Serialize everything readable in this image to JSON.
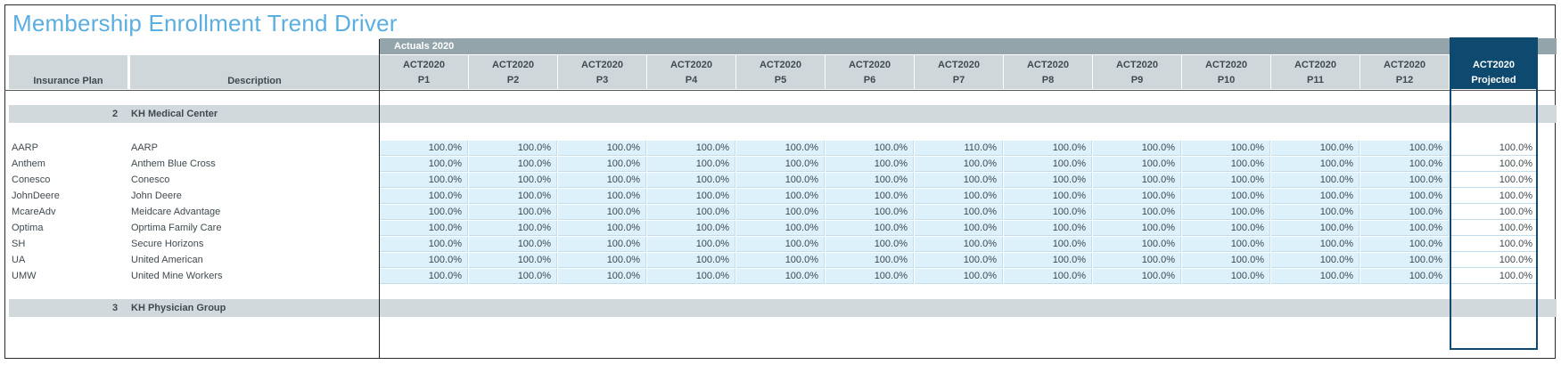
{
  "title": "Membership Enrollment Trend Driver",
  "actuals_label": "Actuals 2020",
  "headers": {
    "plan": "Insurance Plan",
    "description": "Description",
    "columns": [
      {
        "l1": "ACT2020",
        "l2": "P1"
      },
      {
        "l1": "ACT2020",
        "l2": "P2"
      },
      {
        "l1": "ACT2020",
        "l2": "P3"
      },
      {
        "l1": "ACT2020",
        "l2": "P4"
      },
      {
        "l1": "ACT2020",
        "l2": "P5"
      },
      {
        "l1": "ACT2020",
        "l2": "P6"
      },
      {
        "l1": "ACT2020",
        "l2": "P7"
      },
      {
        "l1": "ACT2020",
        "l2": "P8"
      },
      {
        "l1": "ACT2020",
        "l2": "P9"
      },
      {
        "l1": "ACT2020",
        "l2": "P10"
      },
      {
        "l1": "ACT2020",
        "l2": "P11"
      },
      {
        "l1": "ACT2020",
        "l2": "P12"
      }
    ],
    "projected": {
      "l1": "ACT2020",
      "l2": "Projected"
    }
  },
  "groups": [
    {
      "num": "2",
      "name": "KH Medical Center"
    },
    {
      "num": "3",
      "name": "KH Physician Group"
    }
  ],
  "rows": [
    {
      "plan": "AARP",
      "desc": "AARP",
      "values": [
        "100.0%",
        "100.0%",
        "100.0%",
        "100.0%",
        "100.0%",
        "100.0%",
        "110.0%",
        "100.0%",
        "100.0%",
        "100.0%",
        "100.0%",
        "100.0%"
      ],
      "projected": "100.0%"
    },
    {
      "plan": "Anthem",
      "desc": "Anthem Blue Cross",
      "values": [
        "100.0%",
        "100.0%",
        "100.0%",
        "100.0%",
        "100.0%",
        "100.0%",
        "100.0%",
        "100.0%",
        "100.0%",
        "100.0%",
        "100.0%",
        "100.0%"
      ],
      "projected": "100.0%"
    },
    {
      "plan": "Conesco",
      "desc": "Conesco",
      "values": [
        "100.0%",
        "100.0%",
        "100.0%",
        "100.0%",
        "100.0%",
        "100.0%",
        "100.0%",
        "100.0%",
        "100.0%",
        "100.0%",
        "100.0%",
        "100.0%"
      ],
      "projected": "100.0%"
    },
    {
      "plan": "JohnDeere",
      "desc": "John Deere",
      "values": [
        "100.0%",
        "100.0%",
        "100.0%",
        "100.0%",
        "100.0%",
        "100.0%",
        "100.0%",
        "100.0%",
        "100.0%",
        "100.0%",
        "100.0%",
        "100.0%"
      ],
      "projected": "100.0%"
    },
    {
      "plan": "McareAdv",
      "desc": "Meidcare Advantage",
      "values": [
        "100.0%",
        "100.0%",
        "100.0%",
        "100.0%",
        "100.0%",
        "100.0%",
        "100.0%",
        "100.0%",
        "100.0%",
        "100.0%",
        "100.0%",
        "100.0%"
      ],
      "projected": "100.0%"
    },
    {
      "plan": "Optima",
      "desc": "Oprtima Family Care",
      "values": [
        "100.0%",
        "100.0%",
        "100.0%",
        "100.0%",
        "100.0%",
        "100.0%",
        "100.0%",
        "100.0%",
        "100.0%",
        "100.0%",
        "100.0%",
        "100.0%"
      ],
      "projected": "100.0%"
    },
    {
      "plan": "SH",
      "desc": "Secure Horizons",
      "values": [
        "100.0%",
        "100.0%",
        "100.0%",
        "100.0%",
        "100.0%",
        "100.0%",
        "100.0%",
        "100.0%",
        "100.0%",
        "100.0%",
        "100.0%",
        "100.0%"
      ],
      "projected": "100.0%"
    },
    {
      "plan": "UA",
      "desc": "United American",
      "values": [
        "100.0%",
        "100.0%",
        "100.0%",
        "100.0%",
        "100.0%",
        "100.0%",
        "100.0%",
        "100.0%",
        "100.0%",
        "100.0%",
        "100.0%",
        "100.0%"
      ],
      "projected": "100.0%"
    },
    {
      "plan": "UMW",
      "desc": "United Mine Workers",
      "values": [
        "100.0%",
        "100.0%",
        "100.0%",
        "100.0%",
        "100.0%",
        "100.0%",
        "100.0%",
        "100.0%",
        "100.0%",
        "100.0%",
        "100.0%",
        "100.0%"
      ],
      "projected": "100.0%"
    }
  ]
}
